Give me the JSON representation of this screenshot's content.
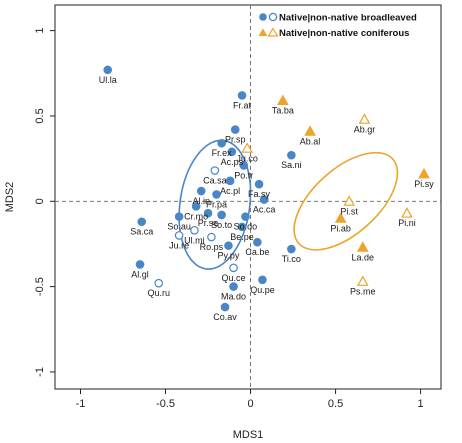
{
  "chart_data": {
    "type": "scatter",
    "xlabel": "MDS1",
    "ylabel": "MDS2",
    "xlim": [
      -1.15,
      1.12
    ],
    "ylim": [
      -1.1,
      1.15
    ],
    "xticks": [
      -1,
      -0.5,
      0,
      0.5,
      1
    ],
    "yticks": [
      -1,
      -0.5,
      0,
      0.5,
      1
    ],
    "xtick_labels": [
      "-1",
      "-0.5",
      "0",
      "0.5",
      "1"
    ],
    "ytick_labels": [
      "-1",
      "-0.5",
      "0",
      "0.5",
      "1"
    ],
    "reference_lines": {
      "x": 0,
      "y": 0
    },
    "legend": {
      "position": "top-right",
      "entries": [
        {
          "text": "Native|non-native broadleaved",
          "marker": "circle"
        },
        {
          "text": "Native|non-native coniferous",
          "marker": "triangle"
        }
      ]
    },
    "colors": {
      "broadleaved": "#4a86c5",
      "coniferous": "#eca42b"
    },
    "ellipses": [
      {
        "group": "broadleaved",
        "cx": -0.21,
        "cy": -0.02,
        "rx": 0.205,
        "ry": 0.38,
        "angle_deg": 8
      },
      {
        "group": "coniferous",
        "cx": 0.56,
        "cy": 0.0,
        "rx": 0.19,
        "ry": 0.37,
        "angle_deg": 48
      }
    ],
    "points": [
      {
        "label": "Ul.la",
        "x": -0.84,
        "y": 0.77,
        "group": "broadleaved",
        "native": true
      },
      {
        "label": "Fr.at",
        "x": -0.05,
        "y": 0.62,
        "group": "broadleaved",
        "native": true
      },
      {
        "label": "Pr.sp",
        "x": -0.09,
        "y": 0.42,
        "group": "broadleaved",
        "native": true
      },
      {
        "label": "Fr.ex",
        "x": -0.17,
        "y": 0.34,
        "group": "broadleaved",
        "native": true
      },
      {
        "label": "Ac.ps",
        "x": -0.11,
        "y": 0.29,
        "group": "broadleaved",
        "native": true
      },
      {
        "label": "Po.tr",
        "x": -0.04,
        "y": 0.21,
        "group": "broadleaved",
        "native": true
      },
      {
        "label": "Ca.sa",
        "x": -0.21,
        "y": 0.18,
        "group": "broadleaved",
        "native": false
      },
      {
        "label": "Ac.pl",
        "x": -0.12,
        "y": 0.12,
        "group": "broadleaved",
        "native": true
      },
      {
        "label": "Fa.sy",
        "x": 0.05,
        "y": 0.1,
        "group": "broadleaved",
        "native": true
      },
      {
        "label": "Al.in",
        "x": -0.29,
        "y": 0.06,
        "group": "broadleaved",
        "native": true
      },
      {
        "label": "Pr.pa",
        "x": -0.2,
        "y": 0.04,
        "group": "broadleaved",
        "native": true
      },
      {
        "label": "Ac.ca",
        "x": 0.08,
        "y": 0.01,
        "group": "broadleaved",
        "native": true
      },
      {
        "label": "Cr.mo",
        "x": -0.32,
        "y": -0.03,
        "group": "broadleaved",
        "native": true
      },
      {
        "label": "So.au",
        "x": -0.42,
        "y": -0.09,
        "group": "broadleaved",
        "native": true
      },
      {
        "label": "Pr.se",
        "x": -0.25,
        "y": -0.07,
        "group": "broadleaved",
        "native": true
      },
      {
        "label": "So.to",
        "x": -0.17,
        "y": -0.08,
        "group": "broadleaved",
        "native": true
      },
      {
        "label": "So.do",
        "x": -0.03,
        "y": -0.09,
        "group": "broadleaved",
        "native": true
      },
      {
        "label": "Be.pe",
        "x": -0.05,
        "y": -0.15,
        "group": "broadleaved",
        "native": true
      },
      {
        "label": "Sa.ca",
        "x": -0.64,
        "y": -0.12,
        "group": "broadleaved",
        "native": true
      },
      {
        "label": "Ul.mi",
        "x": -0.33,
        "y": -0.17,
        "group": "broadleaved",
        "native": false
      },
      {
        "label": "Ju.re",
        "x": -0.42,
        "y": -0.2,
        "group": "broadleaved",
        "native": false
      },
      {
        "label": "Ro.ps",
        "x": -0.23,
        "y": -0.21,
        "group": "broadleaved",
        "native": false
      },
      {
        "label": "Py.py",
        "x": -0.13,
        "y": -0.26,
        "group": "broadleaved",
        "native": true
      },
      {
        "label": "Ca.be",
        "x": 0.04,
        "y": -0.24,
        "group": "broadleaved",
        "native": true
      },
      {
        "label": "Ti.co",
        "x": 0.24,
        "y": -0.28,
        "group": "broadleaved",
        "native": true
      },
      {
        "label": "Qu.ce",
        "x": -0.1,
        "y": -0.39,
        "group": "broadleaved",
        "native": false
      },
      {
        "label": "Al.gl",
        "x": -0.65,
        "y": -0.37,
        "group": "broadleaved",
        "native": true
      },
      {
        "label": "Qu.ru",
        "x": -0.54,
        "y": -0.48,
        "group": "broadleaved",
        "native": false
      },
      {
        "label": "Ma.do",
        "x": -0.1,
        "y": -0.5,
        "group": "broadleaved",
        "native": true
      },
      {
        "label": "Qu.pe",
        "x": 0.07,
        "y": -0.46,
        "group": "broadleaved",
        "native": true
      },
      {
        "label": "Co.av",
        "x": -0.15,
        "y": -0.62,
        "group": "broadleaved",
        "native": true
      },
      {
        "label": "Sa.ni",
        "x": 0.24,
        "y": 0.27,
        "group": "broadleaved",
        "native": true
      },
      {
        "label": "Ju.co",
        "x": -0.02,
        "y": 0.31,
        "group": "coniferous",
        "native": false
      },
      {
        "label": "Ta.ba",
        "x": 0.19,
        "y": 0.59,
        "group": "coniferous",
        "native": true
      },
      {
        "label": "Ab.al",
        "x": 0.35,
        "y": 0.41,
        "group": "coniferous",
        "native": true
      },
      {
        "label": "Ab.gr",
        "x": 0.67,
        "y": 0.48,
        "group": "coniferous",
        "native": false
      },
      {
        "label": "Pi.sy",
        "x": 1.02,
        "y": 0.16,
        "group": "coniferous",
        "native": true
      },
      {
        "label": "Pi.st",
        "x": 0.58,
        "y": 0.0,
        "group": "coniferous",
        "native": false
      },
      {
        "label": "Pi.ab",
        "x": 0.53,
        "y": -0.1,
        "group": "coniferous",
        "native": true
      },
      {
        "label": "Pi.ni",
        "x": 0.92,
        "y": -0.07,
        "group": "coniferous",
        "native": false
      },
      {
        "label": "La.de",
        "x": 0.66,
        "y": -0.27,
        "group": "coniferous",
        "native": true
      },
      {
        "label": "Ps.me",
        "x": 0.66,
        "y": -0.47,
        "group": "coniferous",
        "native": false
      }
    ]
  }
}
